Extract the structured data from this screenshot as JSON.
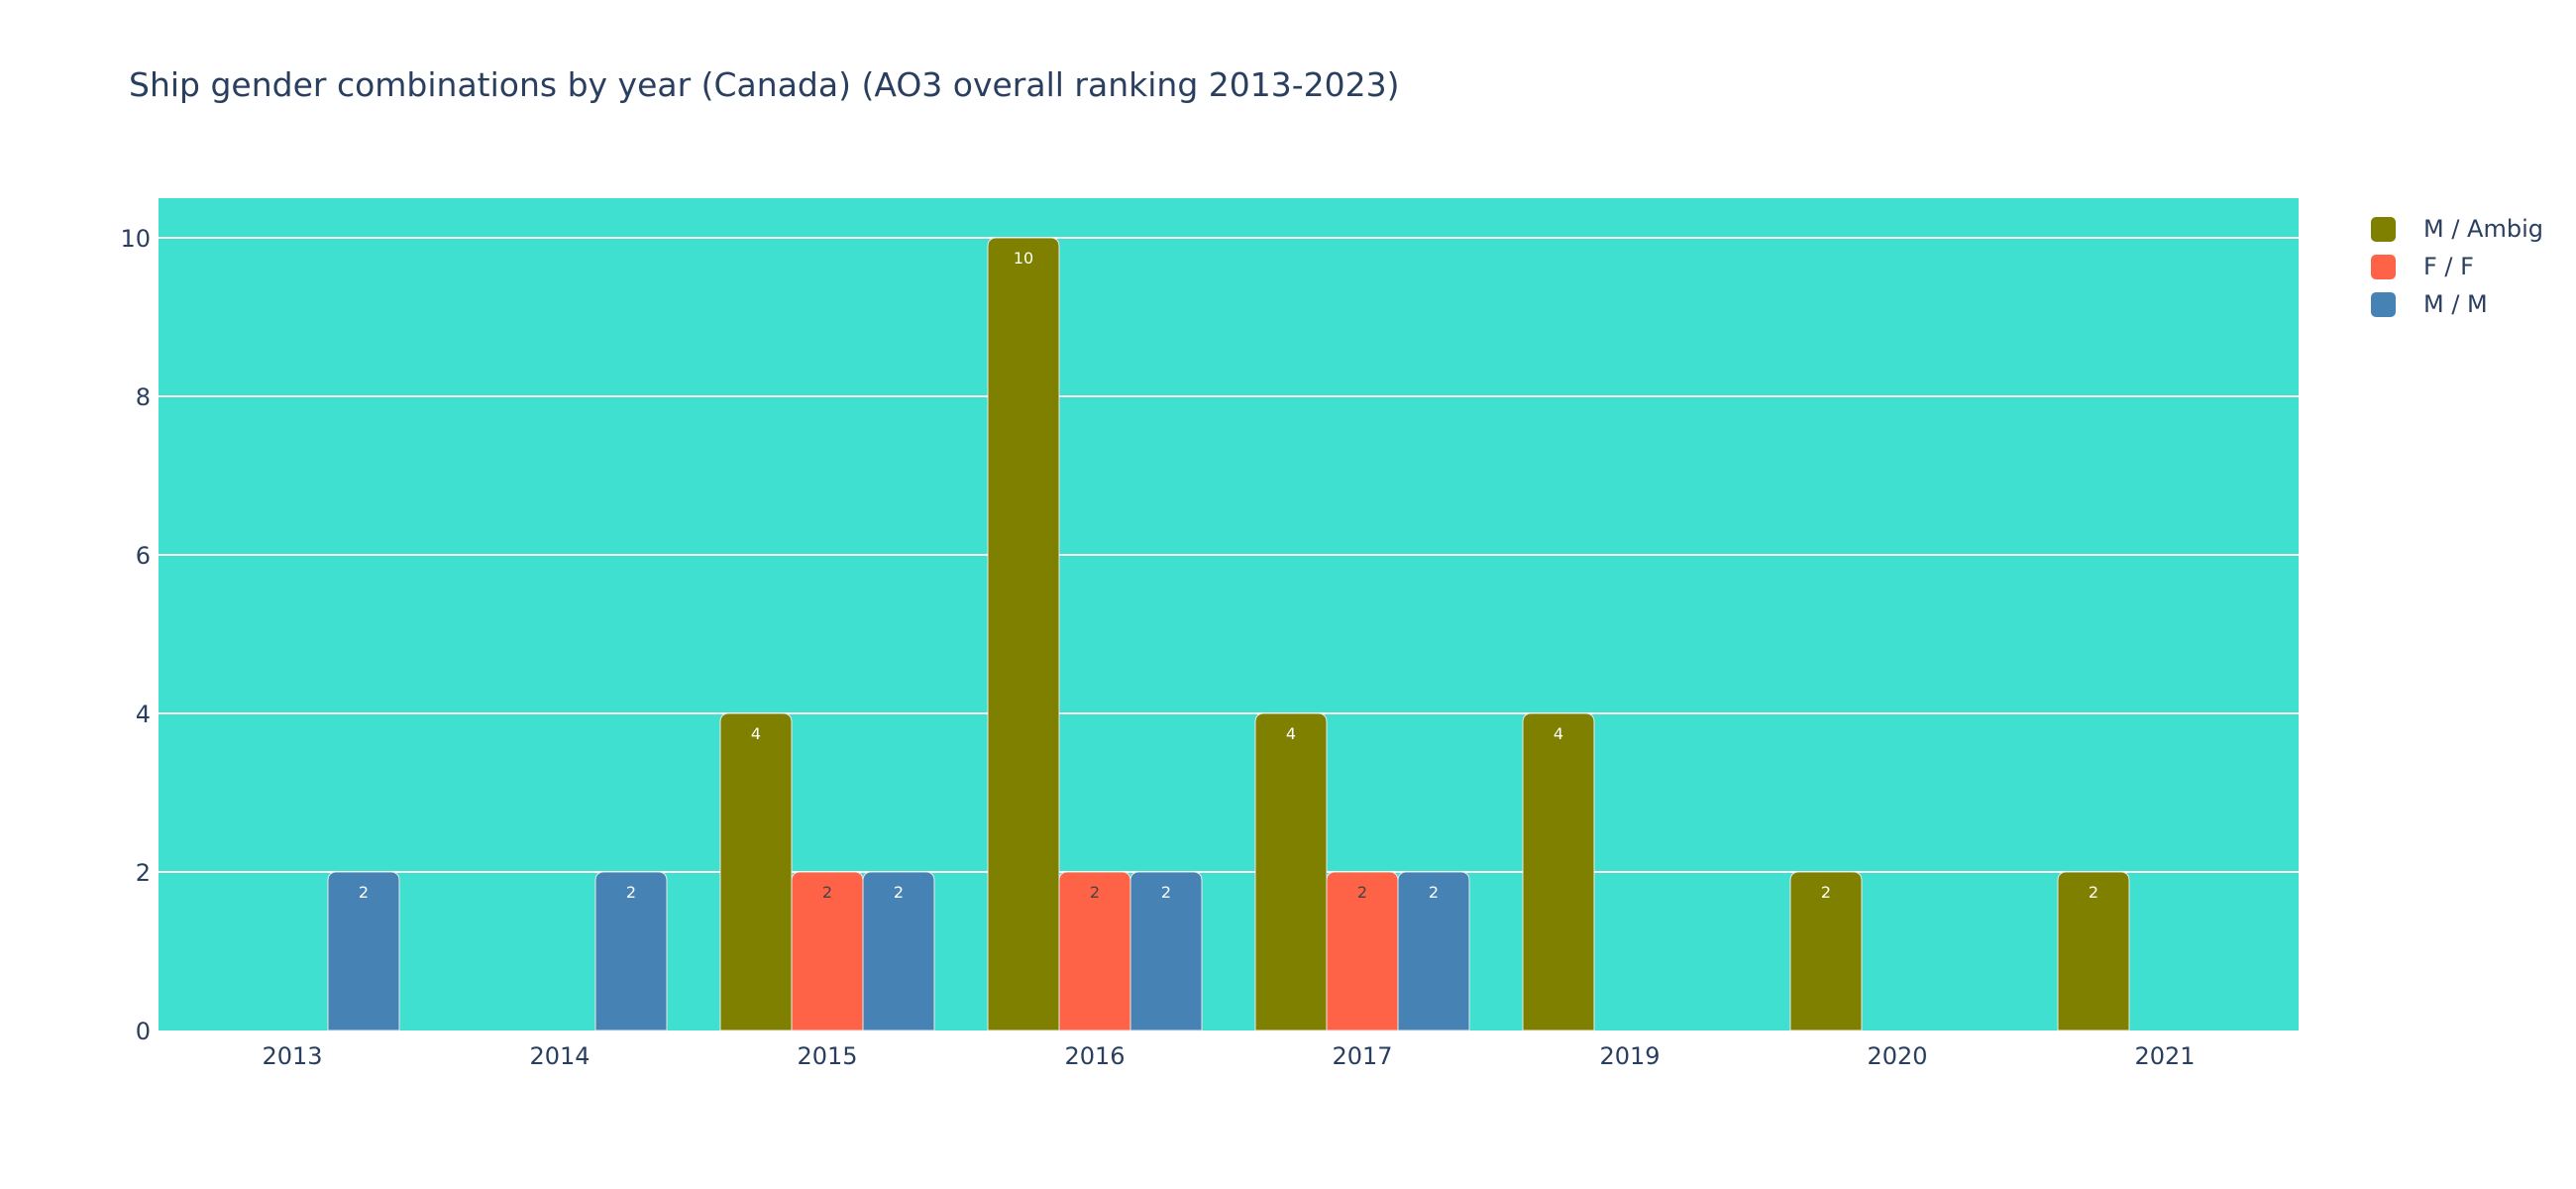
{
  "chart_data": {
    "type": "bar",
    "title": "Ship gender combinations by year (Canada) (AO3 overall ranking 2013-2023)",
    "xlabel": "",
    "ylabel": "",
    "categories": [
      "2013",
      "2014",
      "2015",
      "2016",
      "2017",
      "2019",
      "2020",
      "2021"
    ],
    "ylim": [
      0,
      10.5
    ],
    "yticks": [
      0,
      2,
      4,
      6,
      8,
      10
    ],
    "grid": true,
    "legend_position": "top-right",
    "plot_background": "#40e0d0",
    "series": [
      {
        "name": "M / Ambig",
        "color": "#808000",
        "label_color": "#ffffff",
        "values": [
          null,
          null,
          4,
          10,
          4,
          4,
          2,
          2
        ]
      },
      {
        "name": "F / F",
        "color": "#ff6347",
        "label_color": "#444444",
        "values": [
          null,
          null,
          2,
          2,
          2,
          null,
          null,
          null
        ]
      },
      {
        "name": "M / M",
        "color": "#4682b4",
        "label_color": "#ffffff",
        "values": [
          2,
          2,
          2,
          2,
          2,
          null,
          null,
          null
        ]
      }
    ]
  }
}
